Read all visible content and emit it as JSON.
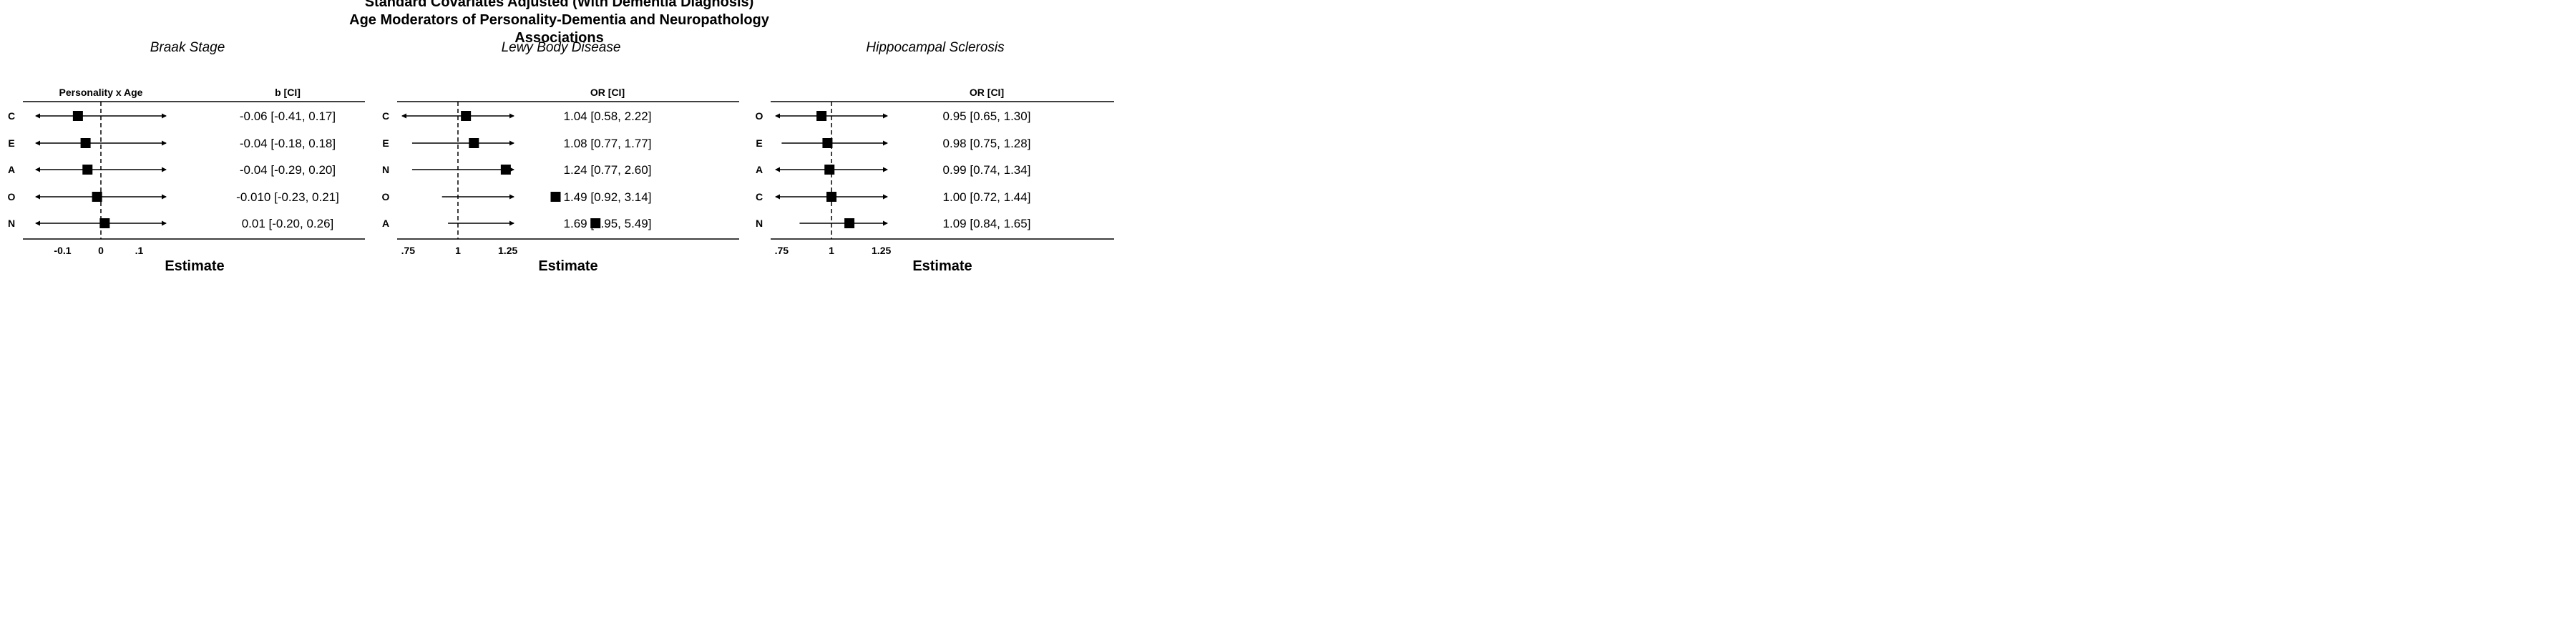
{
  "title_lines": [
    "Standard Covariates Adjusted (With Dementia Diagnosis)",
    "Age Moderators of Personality-Dementia and Neuropathology",
    "Associations"
  ],
  "chart_data": [
    {
      "type": "forest",
      "subtitle": "Braak Stage",
      "column_header": "Personality x Age",
      "estimate_header": "b [CI]",
      "xlabel": "Estimate",
      "reference_line": 0,
      "xlim": [
        -0.17,
        0.17
      ],
      "xticks": [
        {
          "value": -0.1,
          "label": "-0.1"
        },
        {
          "value": 0,
          "label": "0"
        },
        {
          "value": 0.1,
          "label": ".1"
        }
      ],
      "rows": [
        {
          "label": "C",
          "estimate": -0.06,
          "lower": -0.41,
          "upper": 0.17,
          "text": "-0.06 [-0.41, 0.17]",
          "clip_lower": true,
          "clip_upper": true
        },
        {
          "label": "E",
          "estimate": -0.04,
          "lower": -0.18,
          "upper": 0.18,
          "text": "-0.04 [-0.18, 0.18]",
          "clip_lower": true,
          "clip_upper": true
        },
        {
          "label": "A",
          "estimate": -0.035,
          "lower": -0.29,
          "upper": 0.2,
          "text": "-0.04 [-0.29, 0.20]",
          "clip_lower": true,
          "clip_upper": true
        },
        {
          "label": "O",
          "estimate": -0.01,
          "lower": -0.23,
          "upper": 0.21,
          "text": "-0.010 [-0.23, 0.21]",
          "clip_lower": true,
          "clip_upper": true
        },
        {
          "label": "N",
          "estimate": 0.01,
          "lower": -0.2,
          "upper": 0.26,
          "text": "0.01 [-0.20, 0.26]",
          "clip_lower": true,
          "clip_upper": true
        }
      ]
    },
    {
      "type": "forest",
      "subtitle": "Lewy Body Disease",
      "column_header": "",
      "estimate_header": "OR [CI]",
      "xlabel": "Estimate",
      "reference_line": 1,
      "xlim": [
        0.72,
        1.28
      ],
      "xticks": [
        {
          "value": 0.75,
          "label": ".75"
        },
        {
          "value": 1,
          "label": "1"
        },
        {
          "value": 1.25,
          "label": "1.25"
        }
      ],
      "rows": [
        {
          "label": "C",
          "estimate": 1.04,
          "lower": 0.58,
          "upper": 2.22,
          "text": "1.04 [0.58, 2.22]",
          "clip_lower": true,
          "clip_upper": true
        },
        {
          "label": "E",
          "estimate": 1.08,
          "lower": 0.77,
          "upper": 1.77,
          "text": "1.08 [0.77, 1.77]",
          "clip_lower": false,
          "clip_upper": true
        },
        {
          "label": "N",
          "estimate": 1.24,
          "lower": 0.77,
          "upper": 2.6,
          "text": "1.24 [0.77, 2.60]",
          "clip_lower": false,
          "clip_upper": true
        },
        {
          "label": "O",
          "estimate": 1.49,
          "lower": 0.92,
          "upper": 3.14,
          "text": "1.49 [0.92, 3.14]",
          "clip_lower": false,
          "clip_upper": true
        },
        {
          "label": "A",
          "estimate": 1.69,
          "lower": 0.95,
          "upper": 5.49,
          "text": "1.69 [0.95, 5.49]",
          "clip_lower": false,
          "clip_upper": true
        }
      ]
    },
    {
      "type": "forest",
      "subtitle": "Hippocampal Sclerosis",
      "column_header": "",
      "estimate_header": "OR [CI]",
      "xlabel": "Estimate",
      "reference_line": 1,
      "xlim": [
        0.72,
        1.28
      ],
      "xticks": [
        {
          "value": 0.75,
          "label": ".75"
        },
        {
          "value": 1,
          "label": "1"
        },
        {
          "value": 1.25,
          "label": "1.25"
        }
      ],
      "rows": [
        {
          "label": "O",
          "estimate": 0.95,
          "lower": 0.65,
          "upper": 1.3,
          "text": "0.95 [0.65, 1.30]",
          "clip_lower": true,
          "clip_upper": true
        },
        {
          "label": "E",
          "estimate": 0.98,
          "lower": 0.75,
          "upper": 1.28,
          "text": "0.98 [0.75, 1.28]",
          "clip_lower": false,
          "clip_upper": true
        },
        {
          "label": "A",
          "estimate": 0.99,
          "lower": 0.74,
          "upper": 1.34,
          "text": "0.99 [0.74, 1.34]",
          "clip_lower": true,
          "clip_upper": true
        },
        {
          "label": "C",
          "estimate": 1.0,
          "lower": 0.72,
          "upper": 1.44,
          "text": "1.00 [0.72, 1.44]",
          "clip_lower": true,
          "clip_upper": true
        },
        {
          "label": "N",
          "estimate": 1.09,
          "lower": 0.84,
          "upper": 1.65,
          "text": "1.09 [0.84, 1.65]",
          "clip_lower": false,
          "clip_upper": true
        }
      ]
    }
  ]
}
